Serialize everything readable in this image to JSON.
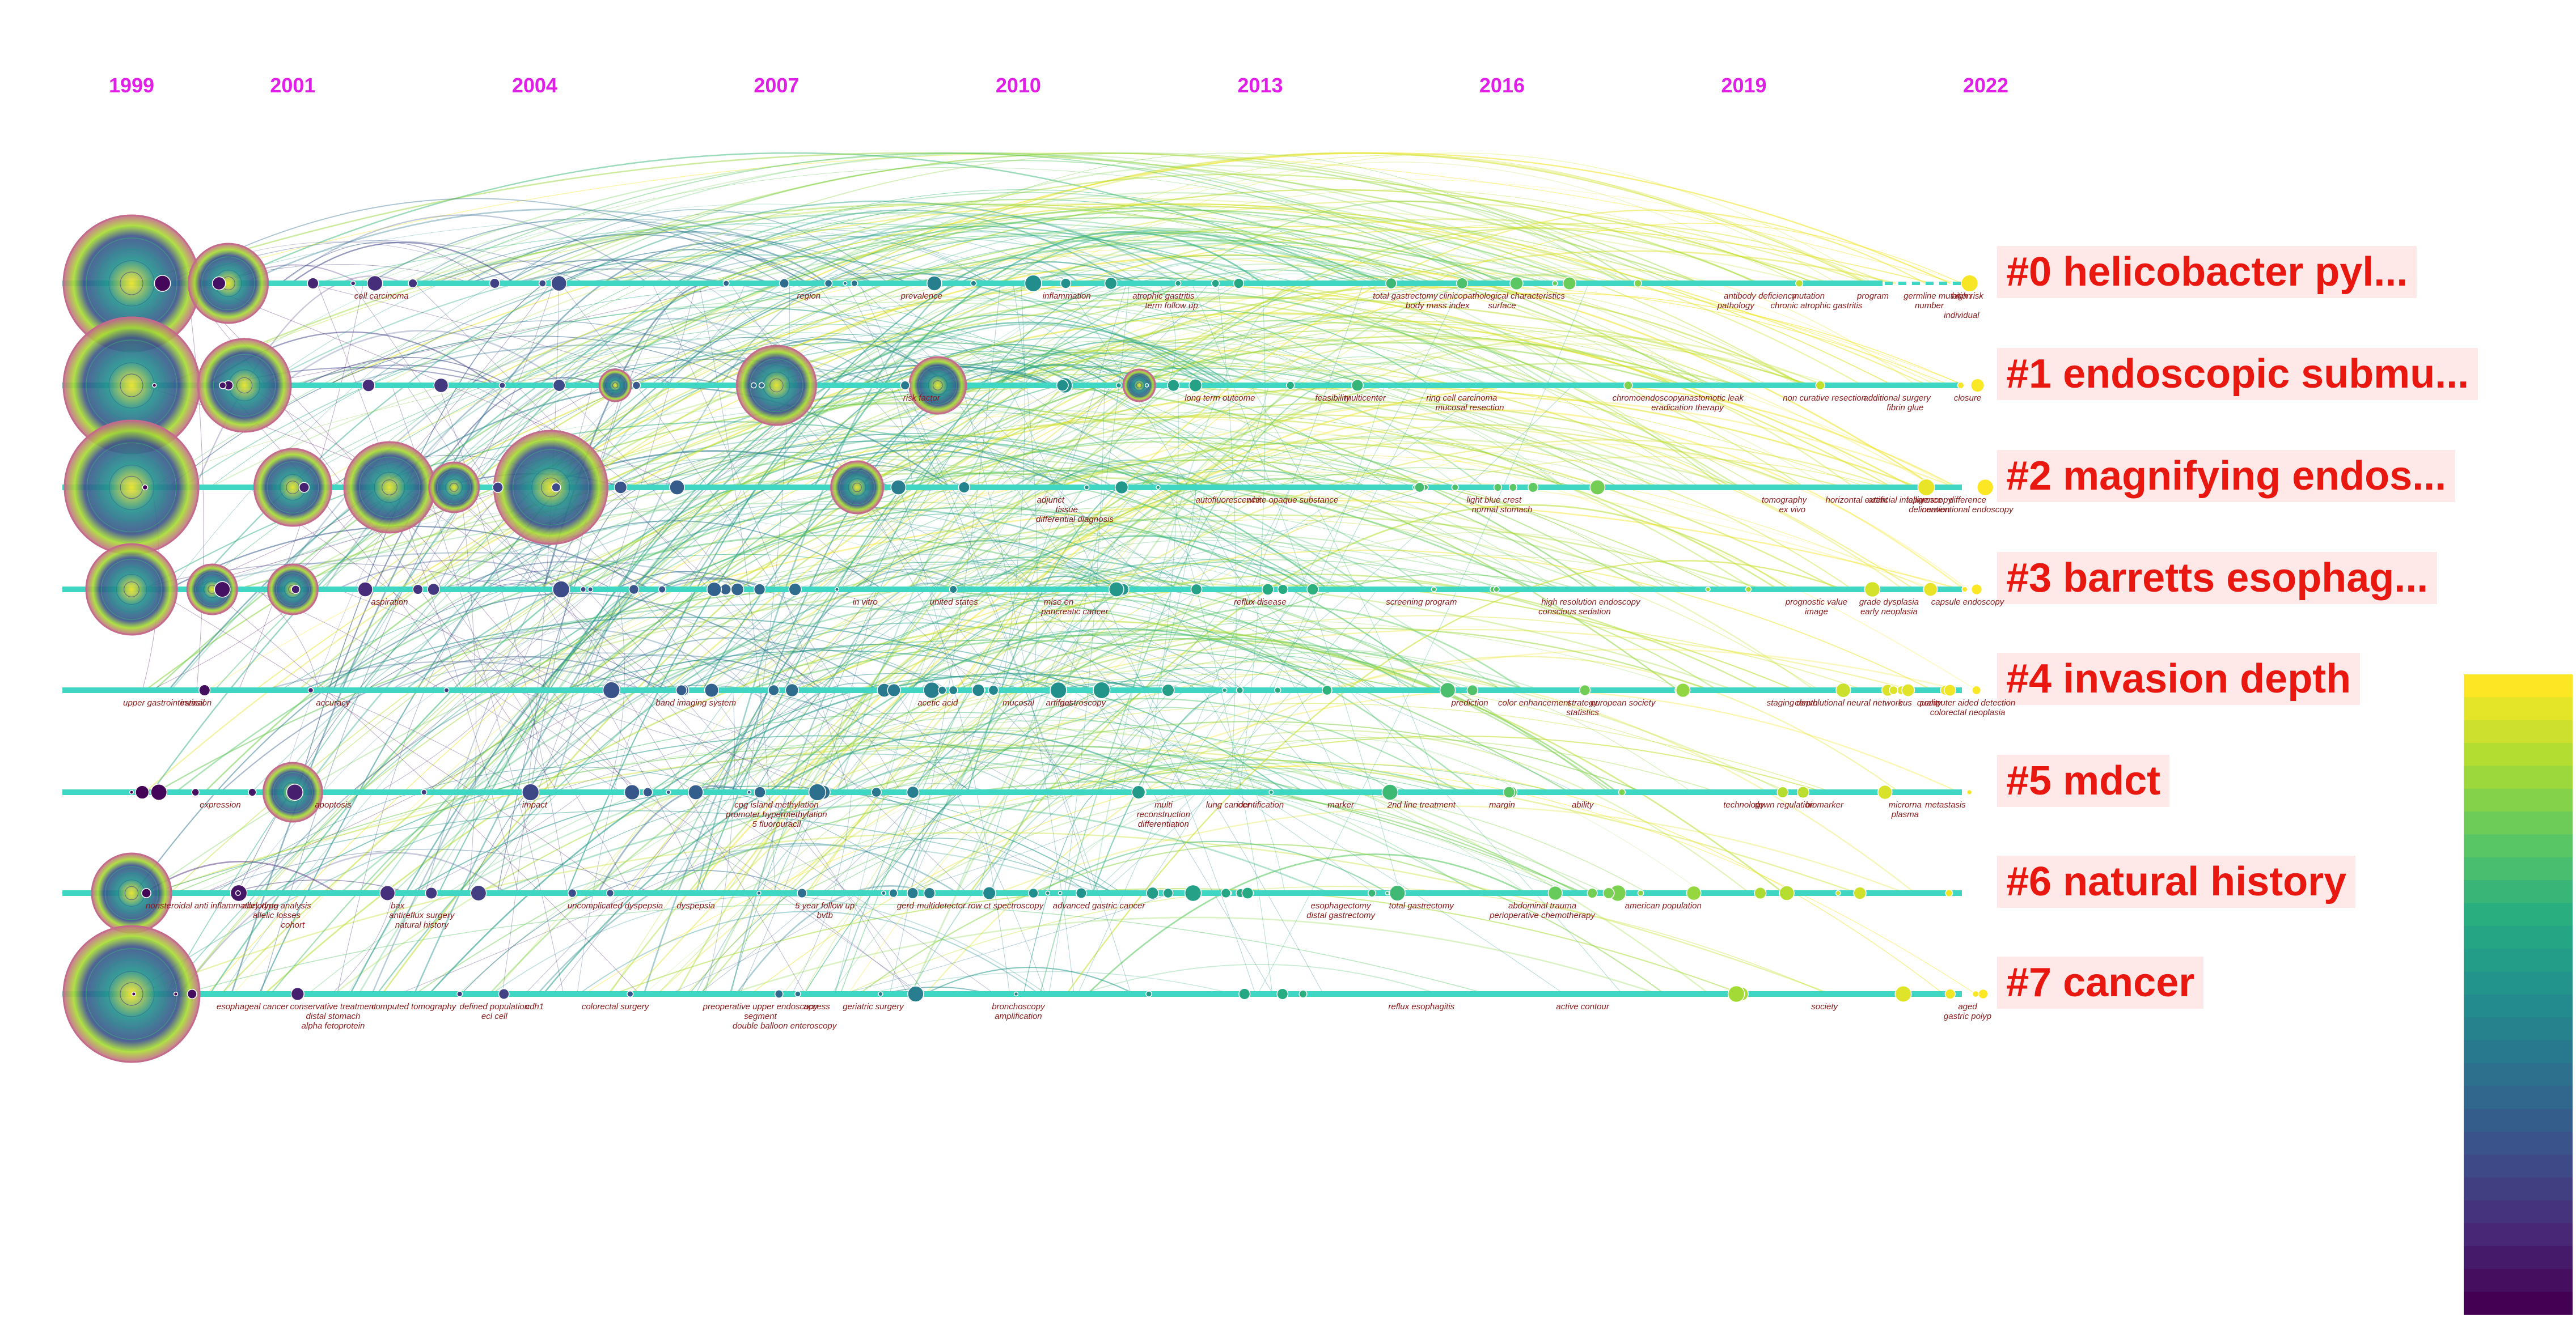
{
  "years": [
    "1999",
    "2001",
    "2004",
    "2007",
    "2010",
    "2013",
    "2016",
    "2019",
    "2022"
  ],
  "clusters": [
    {
      "id": "#0",
      "label": "#0 helicobacter pyl...",
      "color": "#3fd6c4"
    },
    {
      "id": "#1",
      "label": "#1 endoscopic submu...",
      "color": "#3fd6c4"
    },
    {
      "id": "#2",
      "label": "#2 magnifying endos...",
      "color": "#3fd6c4"
    },
    {
      "id": "#3",
      "label": "#3 barretts esophag...",
      "color": "#3fd6c4"
    },
    {
      "id": "#4",
      "label": "#4 invasion depth",
      "color": "#3fd6c4"
    },
    {
      "id": "#5",
      "label": "#5 mdct",
      "color": "#3fd6c4"
    },
    {
      "id": "#6",
      "label": "#6 natural history",
      "color": "#3fd6c4"
    },
    {
      "id": "#7",
      "label": "#7 cancer",
      "color": "#3fd6c4"
    }
  ],
  "keywords": [
    {
      "c": 0,
      "y": 2002.1,
      "t": "cell carcinoma"
    },
    {
      "c": 0,
      "y": 2007.4,
      "t": "region"
    },
    {
      "c": 0,
      "y": 2008.8,
      "t": "prevalence"
    },
    {
      "c": 0,
      "y": 2010.6,
      "t": "inflammation"
    },
    {
      "c": 0,
      "y": 2011.8,
      "t": "atrophic gastritis"
    },
    {
      "c": 0,
      "y": 2011.9,
      "t": "term follow up"
    },
    {
      "c": 0,
      "y": 2014.8,
      "t": "total gastrectomy"
    },
    {
      "c": 0,
      "y": 2016.0,
      "t": "clinicopathological characteristics"
    },
    {
      "c": 0,
      "y": 2019.2,
      "t": "antibody deficiency"
    },
    {
      "c": 0,
      "y": 2018.9,
      "t": "pathology"
    },
    {
      "c": 0,
      "y": 2019.8,
      "t": "mutation"
    },
    {
      "c": 0,
      "y": 2019.9,
      "t": "chronic atrophic gastritis"
    },
    {
      "c": 0,
      "y": 2021.4,
      "t": "germline mutation"
    },
    {
      "c": 0,
      "y": 2021.3,
      "t": "number"
    },
    {
      "c": 0,
      "y": 2020.6,
      "t": "program"
    },
    {
      "c": 0,
      "y": 2021.7,
      "t": "individual"
    },
    {
      "c": 0,
      "y": 2022.0,
      "t": "high risk"
    },
    {
      "c": 0,
      "y": 2015.2,
      "t": "body mass index"
    },
    {
      "c": 0,
      "y": 2016.0,
      "t": "surface"
    },
    {
      "c": 1,
      "y": 2015.5,
      "t": "ring cell carcinoma"
    },
    {
      "c": 1,
      "y": 2017.8,
      "t": "chromoendoscopy"
    },
    {
      "c": 1,
      "y": 2018.6,
      "t": "anastomotic leak"
    },
    {
      "c": 1,
      "y": 2018.3,
      "t": "eradication therapy"
    },
    {
      "c": 1,
      "y": 2020.0,
      "t": "non curative resection"
    },
    {
      "c": 1,
      "y": 2020.9,
      "t": "additional surgery"
    },
    {
      "c": 1,
      "y": 2021.0,
      "t": "fibrin glue"
    },
    {
      "c": 1,
      "y": 2021.8,
      "t": "closure"
    },
    {
      "c": 1,
      "y": 2012.5,
      "t": "long term outcome"
    },
    {
      "c": 1,
      "y": 2013.9,
      "t": "feasibility"
    },
    {
      "c": 1,
      "y": 2014.3,
      "t": "multicenter"
    },
    {
      "c": 1,
      "y": 2015.6,
      "t": "mucosal resection"
    },
    {
      "c": 1,
      "y": 2008.8,
      "t": "risk factor"
    },
    {
      "c": 2,
      "y": 2015.9,
      "t": "light blue crest"
    },
    {
      "c": 2,
      "y": 2016.0,
      "t": "normal stomach"
    },
    {
      "c": 2,
      "y": 2019.5,
      "t": "tomography"
    },
    {
      "c": 2,
      "y": 2019.6,
      "t": "ex vivo"
    },
    {
      "c": 2,
      "y": 2020.4,
      "t": "horizontal extent"
    },
    {
      "c": 2,
      "y": 2021.3,
      "t": "laparoscopy"
    },
    {
      "c": 2,
      "y": 2021.0,
      "t": "artificial intelligence"
    },
    {
      "c": 2,
      "y": 2021.3,
      "t": "delineation"
    },
    {
      "c": 2,
      "y": 2022.0,
      "t": "difference"
    },
    {
      "c": 2,
      "y": 2022.0,
      "t": "conventional endoscopy"
    },
    {
      "c": 2,
      "y": 2013.4,
      "t": "white opaque substance"
    },
    {
      "c": 2,
      "y": 2012.6,
      "t": "autofluorescence"
    },
    {
      "c": 2,
      "y": 2010.4,
      "t": "adjunct"
    },
    {
      "c": 2,
      "y": 2010.6,
      "t": "tissue"
    },
    {
      "c": 2,
      "y": 2010.7,
      "t": "differential diagnosis"
    },
    {
      "c": 3,
      "y": 2017.1,
      "t": "high resolution endoscopy"
    },
    {
      "c": 3,
      "y": 2016.9,
      "t": "conscious sedation"
    },
    {
      "c": 3,
      "y": 2019.9,
      "t": "prognostic value"
    },
    {
      "c": 3,
      "y": 2019.9,
      "t": "image"
    },
    {
      "c": 3,
      "y": 2020.8,
      "t": "grade dysplasia"
    },
    {
      "c": 3,
      "y": 2020.8,
      "t": "early neoplasia"
    },
    {
      "c": 3,
      "y": 2021.9,
      "t": "capsule endoscopy"
    },
    {
      "c": 3,
      "y": 2015.0,
      "t": "screening program"
    },
    {
      "c": 3,
      "y": 2013.0,
      "t": "reflux disease"
    },
    {
      "c": 3,
      "y": 2010.5,
      "t": "mise en"
    },
    {
      "c": 3,
      "y": 2010.7,
      "t": "pancreatic cancer"
    },
    {
      "c": 3,
      "y": 2008.1,
      "t": "in vitro"
    },
    {
      "c": 3,
      "y": 2009.2,
      "t": "united states"
    },
    {
      "c": 3,
      "y": 2002.2,
      "t": "aspiration"
    },
    {
      "c": 4,
      "y": 2015.6,
      "t": "prediction"
    },
    {
      "c": 4,
      "y": 2016.4,
      "t": "color enhancement"
    },
    {
      "c": 4,
      "y": 2017.0,
      "t": "strategy"
    },
    {
      "c": 4,
      "y": 2017.0,
      "t": "statistics"
    },
    {
      "c": 4,
      "y": 2017.5,
      "t": "european society"
    },
    {
      "c": 4,
      "y": 2019.6,
      "t": "staging depth"
    },
    {
      "c": 4,
      "y": 2020.3,
      "t": "convolutional neural network"
    },
    {
      "c": 4,
      "y": 2021.3,
      "t": "quality"
    },
    {
      "c": 4,
      "y": 2021.0,
      "t": "eus"
    },
    {
      "c": 4,
      "y": 2022.0,
      "t": "computer aided detection"
    },
    {
      "c": 4,
      "y": 2022.0,
      "t": "colorectal neoplasia"
    },
    {
      "c": 4,
      "y": 2006.0,
      "t": "band imaging system"
    },
    {
      "c": 4,
      "y": 2009.0,
      "t": "acetic acid"
    },
    {
      "c": 4,
      "y": 2010.0,
      "t": "mucosal"
    },
    {
      "c": 4,
      "y": 2010.5,
      "t": "artifact"
    },
    {
      "c": 4,
      "y": 2010.8,
      "t": "gastroscopy"
    },
    {
      "c": 4,
      "y": 2001.5,
      "t": "accuracy"
    },
    {
      "c": 4,
      "y": 1999.4,
      "t": "upper gastrointestinal"
    },
    {
      "c": 4,
      "y": 1999.8,
      "t": "invasion"
    },
    {
      "c": 5,
      "y": 2007.0,
      "t": "cpg island methylation"
    },
    {
      "c": 5,
      "y": 2007.0,
      "t": "promoter hypermethylation"
    },
    {
      "c": 5,
      "y": 2007.0,
      "t": "5 fluorouracil"
    },
    {
      "c": 5,
      "y": 2011.8,
      "t": "multi"
    },
    {
      "c": 5,
      "y": 2011.8,
      "t": "reconstruction"
    },
    {
      "c": 5,
      "y": 2011.8,
      "t": "differentiation"
    },
    {
      "c": 5,
      "y": 2012.6,
      "t": "lung cancer"
    },
    {
      "c": 5,
      "y": 2013.0,
      "t": "identification"
    },
    {
      "c": 5,
      "y": 2014.0,
      "t": "marker"
    },
    {
      "c": 5,
      "y": 2015.0,
      "t": "2nd line treatment"
    },
    {
      "c": 5,
      "y": 2016.0,
      "t": "margin"
    },
    {
      "c": 5,
      "y": 2017.0,
      "t": "ability"
    },
    {
      "c": 5,
      "y": 2019.0,
      "t": "technology"
    },
    {
      "c": 5,
      "y": 2019.5,
      "t": "down regulation"
    },
    {
      "c": 5,
      "y": 2020.0,
      "t": "biomarker"
    },
    {
      "c": 5,
      "y": 2021.0,
      "t": "microrna"
    },
    {
      "c": 5,
      "y": 2021.0,
      "t": "plasma"
    },
    {
      "c": 5,
      "y": 2021.5,
      "t": "metastasis"
    },
    {
      "c": 5,
      "y": 2004.0,
      "t": "impact"
    },
    {
      "c": 5,
      "y": 2001.5,
      "t": "apoptosis"
    },
    {
      "c": 5,
      "y": 2000.1,
      "t": "expression"
    },
    {
      "c": 6,
      "y": 2000.8,
      "t": "allelotype analysis"
    },
    {
      "c": 6,
      "y": 2000.8,
      "t": "allelic losses"
    },
    {
      "c": 6,
      "y": 2001.0,
      "t": "cohort"
    },
    {
      "c": 6,
      "y": 2002.3,
      "t": "bax"
    },
    {
      "c": 6,
      "y": 2002.6,
      "t": "antireflux surgery"
    },
    {
      "c": 6,
      "y": 2002.6,
      "t": "natural history"
    },
    {
      "c": 6,
      "y": 2005.0,
      "t": "uncomplicated dyspepsia"
    },
    {
      "c": 6,
      "y": 2006.0,
      "t": "dyspepsia"
    },
    {
      "c": 6,
      "y": 2007.6,
      "t": "5 year follow up"
    },
    {
      "c": 6,
      "y": 2007.6,
      "t": "bvtb"
    },
    {
      "c": 6,
      "y": 2008.6,
      "t": "gerd"
    },
    {
      "c": 6,
      "y": 2009.2,
      "t": "multidetector row ct"
    },
    {
      "c": 6,
      "y": 2010.0,
      "t": "spectroscopy"
    },
    {
      "c": 6,
      "y": 2011.0,
      "t": "advanced gastric cancer"
    },
    {
      "c": 6,
      "y": 2014.0,
      "t": "esophagectomy"
    },
    {
      "c": 6,
      "y": 2014.0,
      "t": "distal gastrectomy"
    },
    {
      "c": 6,
      "y": 2015.0,
      "t": "total gastrectomy"
    },
    {
      "c": 6,
      "y": 2016.5,
      "t": "abdominal trauma"
    },
    {
      "c": 6,
      "y": 2016.5,
      "t": "perioperative chemotherapy"
    },
    {
      "c": 6,
      "y": 2018.0,
      "t": "american population"
    },
    {
      "c": 6,
      "y": 2000.0,
      "t": "nonsteroidal anti inflammatory drug"
    },
    {
      "c": 7,
      "y": 2000.5,
      "t": "esophageal cancer"
    },
    {
      "c": 7,
      "y": 2001.5,
      "t": "conservative treatment"
    },
    {
      "c": 7,
      "y": 2001.5,
      "t": "distal stomach"
    },
    {
      "c": 7,
      "y": 2001.5,
      "t": "alpha fetoprotein"
    },
    {
      "c": 7,
      "y": 2002.5,
      "t": "computed tomography"
    },
    {
      "c": 7,
      "y": 2003.5,
      "t": "defined population"
    },
    {
      "c": 7,
      "y": 2003.5,
      "t": "ecl cell"
    },
    {
      "c": 7,
      "y": 2004.0,
      "t": "cdh1"
    },
    {
      "c": 7,
      "y": 2005.0,
      "t": "colorectal surgery"
    },
    {
      "c": 7,
      "y": 2006.8,
      "t": "preoperative upper endoscopy"
    },
    {
      "c": 7,
      "y": 2006.8,
      "t": "segment"
    },
    {
      "c": 7,
      "y": 2007.1,
      "t": "double balloon enteroscopy"
    },
    {
      "c": 7,
      "y": 2007.5,
      "t": "access"
    },
    {
      "c": 7,
      "y": 2008.2,
      "t": "geriatric surgery"
    },
    {
      "c": 7,
      "y": 2010.0,
      "t": "bronchoscopy"
    },
    {
      "c": 7,
      "y": 2010.0,
      "t": "amplification"
    },
    {
      "c": 7,
      "y": 2015.0,
      "t": "reflux esophagitis"
    },
    {
      "c": 7,
      "y": 2017.0,
      "t": "active contour"
    },
    {
      "c": 7,
      "y": 2020.0,
      "t": "society"
    },
    {
      "c": 7,
      "y": 2022.0,
      "t": "aged"
    },
    {
      "c": 7,
      "y": 2022.0,
      "t": "gastric polyp"
    }
  ],
  "colorbar": {
    "stops": [
      "#440154",
      "#472c7a",
      "#3b518b",
      "#2c718e",
      "#21908d",
      "#27ad81",
      "#5cc863",
      "#aadc32",
      "#fde725"
    ]
  }
}
